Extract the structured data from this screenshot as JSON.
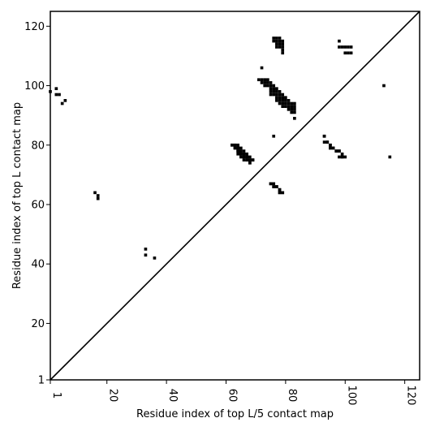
{
  "chart_data": {
    "type": "scatter",
    "xlabel": "Residue index of top L/5 contact map",
    "ylabel": "Residue index of top L contact map",
    "xlim": [
      1,
      125
    ],
    "ylim": [
      1,
      125
    ],
    "x_ticks": [
      1,
      20,
      40,
      60,
      80,
      100,
      120
    ],
    "y_ticks": [
      1,
      20,
      40,
      60,
      80,
      100,
      120
    ],
    "diagonal": {
      "from": [
        1,
        1
      ],
      "to": [
        125,
        125
      ]
    },
    "series": [
      {
        "color": "#000000",
        "description_lower_triangle": "top L/5 contacts (i,j) with j<i",
        "points": [
          [
            62,
            80
          ],
          [
            63,
            80
          ],
          [
            64,
            79
          ],
          [
            65,
            78
          ],
          [
            66,
            77
          ],
          [
            67,
            76
          ],
          [
            68,
            75
          ],
          [
            69,
            75
          ],
          [
            63,
            79
          ],
          [
            64,
            78
          ],
          [
            65,
            77
          ],
          [
            66,
            76
          ],
          [
            67,
            75
          ],
          [
            68,
            74
          ],
          [
            75,
            67
          ],
          [
            76,
            66
          ],
          [
            77,
            66
          ],
          [
            78,
            65
          ],
          [
            79,
            64
          ],
          [
            78,
            64
          ],
          [
            93,
            83
          ],
          [
            94,
            81
          ],
          [
            95,
            80
          ],
          [
            95,
            79
          ],
          [
            96,
            79
          ],
          [
            97,
            78
          ],
          [
            98,
            78
          ],
          [
            99,
            76
          ],
          [
            98,
            76
          ]
        ]
      },
      {
        "color": "#000000",
        "description_upper_triangle": "top L contacts (i,j) with j>i",
        "points": [
          [
            1,
            98
          ],
          [
            3,
            99
          ],
          [
            3,
            97
          ],
          [
            4,
            97
          ],
          [
            5,
            94
          ],
          [
            6,
            95
          ],
          [
            16,
            64
          ],
          [
            17,
            63
          ],
          [
            17,
            62
          ],
          [
            33,
            45
          ],
          [
            33,
            43
          ],
          [
            36,
            42
          ],
          [
            62,
            80
          ],
          [
            63,
            80
          ],
          [
            64,
            80
          ],
          [
            63,
            79
          ],
          [
            64,
            79
          ],
          [
            65,
            79
          ],
          [
            64,
            78
          ],
          [
            65,
            78
          ],
          [
            66,
            78
          ],
          [
            64,
            77
          ],
          [
            65,
            77
          ],
          [
            66,
            77
          ],
          [
            67,
            77
          ],
          [
            65,
            76
          ],
          [
            66,
            76
          ],
          [
            67,
            76
          ],
          [
            68,
            76
          ],
          [
            66,
            75
          ],
          [
            67,
            75
          ],
          [
            68,
            75
          ],
          [
            69,
            75
          ],
          [
            68,
            74
          ],
          [
            72,
            106
          ],
          [
            71,
            102
          ],
          [
            72,
            102
          ],
          [
            73,
            102
          ],
          [
            74,
            102
          ],
          [
            72,
            101
          ],
          [
            73,
            101
          ],
          [
            74,
            101
          ],
          [
            75,
            101
          ],
          [
            73,
            100
          ],
          [
            74,
            100
          ],
          [
            75,
            100
          ],
          [
            76,
            100
          ],
          [
            75,
            99
          ],
          [
            76,
            99
          ],
          [
            77,
            99
          ],
          [
            75,
            98
          ],
          [
            76,
            98
          ],
          [
            77,
            98
          ],
          [
            78,
            98
          ],
          [
            75,
            97
          ],
          [
            76,
            97
          ],
          [
            77,
            97
          ],
          [
            78,
            97
          ],
          [
            79,
            97
          ],
          [
            77,
            96
          ],
          [
            78,
            96
          ],
          [
            79,
            96
          ],
          [
            80,
            96
          ],
          [
            77,
            95
          ],
          [
            78,
            95
          ],
          [
            79,
            95
          ],
          [
            80,
            95
          ],
          [
            81,
            95
          ],
          [
            78,
            94
          ],
          [
            79,
            94
          ],
          [
            80,
            94
          ],
          [
            81,
            94
          ],
          [
            82,
            94
          ],
          [
            83,
            94
          ],
          [
            79,
            93
          ],
          [
            80,
            93
          ],
          [
            81,
            93
          ],
          [
            82,
            93
          ],
          [
            83,
            93
          ],
          [
            81,
            92
          ],
          [
            82,
            92
          ],
          [
            83,
            92
          ],
          [
            82,
            91
          ],
          [
            83,
            91
          ],
          [
            83,
            89
          ],
          [
            76,
            116
          ],
          [
            77,
            116
          ],
          [
            78,
            116
          ],
          [
            76,
            115
          ],
          [
            77,
            115
          ],
          [
            78,
            115
          ],
          [
            79,
            115
          ],
          [
            77,
            114
          ],
          [
            78,
            114
          ],
          [
            79,
            114
          ],
          [
            77,
            113
          ],
          [
            78,
            113
          ],
          [
            79,
            113
          ],
          [
            79,
            112
          ],
          [
            79,
            111
          ],
          [
            76,
            83
          ],
          [
            75,
            67
          ],
          [
            76,
            67
          ],
          [
            76,
            66
          ],
          [
            77,
            66
          ],
          [
            78,
            65
          ],
          [
            79,
            64
          ],
          [
            78,
            64
          ],
          [
            93,
            83
          ],
          [
            93,
            81
          ],
          [
            94,
            81
          ],
          [
            95,
            80
          ],
          [
            95,
            79
          ],
          [
            96,
            79
          ],
          [
            97,
            78
          ],
          [
            98,
            78
          ],
          [
            99,
            77
          ],
          [
            99,
            76
          ],
          [
            100,
            76
          ],
          [
            98,
            115
          ],
          [
            98,
            113
          ],
          [
            99,
            113
          ],
          [
            100,
            113
          ],
          [
            101,
            113
          ],
          [
            102,
            113
          ],
          [
            100,
            111
          ],
          [
            101,
            111
          ],
          [
            102,
            111
          ],
          [
            113,
            100
          ],
          [
            115,
            76
          ]
        ]
      }
    ]
  }
}
